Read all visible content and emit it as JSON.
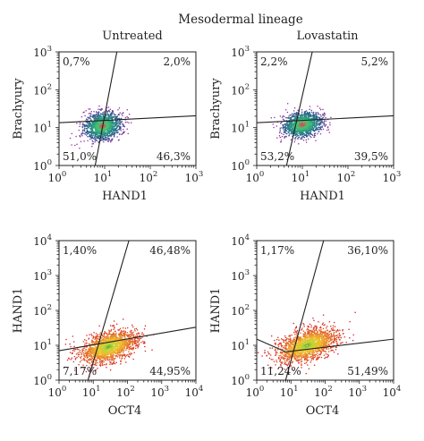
{
  "figure": {
    "title": "Mesodermal lineage"
  },
  "chart_data": [
    {
      "type": "scatter",
      "panel": "top-left",
      "title": "Untreated",
      "xlabel": "HAND1",
      "ylabel": "Brachyury",
      "x_scale": "log",
      "y_scale": "log",
      "xlim": [
        1,
        1000
      ],
      "ylim": [
        1,
        1000
      ],
      "x_ticks": [
        {
          "base": "10",
          "exp": "0"
        },
        {
          "base": "10",
          "exp": "1"
        },
        {
          "base": "10",
          "exp": "2"
        },
        {
          "base": "10",
          "exp": "3"
        }
      ],
      "y_ticks": [
        {
          "base": "10",
          "exp": "0"
        },
        {
          "base": "10",
          "exp": "1"
        },
        {
          "base": "10",
          "exp": "2"
        },
        {
          "base": "10",
          "exp": "3"
        }
      ],
      "quadrants": {
        "top_left": "0,7%",
        "top_right": "2,0%",
        "bottom_left": "51,0%",
        "bottom_right": "46,3%"
      },
      "gate_lines": [
        {
          "from": [
            1,
            13.5
          ],
          "to": [
            1000,
            20.5
          ]
        },
        {
          "from": [
            6.2,
            1
          ],
          "to": [
            18.5,
            1000
          ]
        }
      ],
      "population": {
        "center": [
          9,
          11
        ],
        "spread_log": [
          0.21,
          0.17
        ],
        "rotation_deg": 25,
        "count": 1400,
        "colormap": "density-cool"
      }
    },
    {
      "type": "scatter",
      "panel": "top-right",
      "title": "Lovastatin",
      "xlabel": "HAND1",
      "ylabel": "Brachyury",
      "x_scale": "log",
      "y_scale": "log",
      "xlim": [
        1,
        1000
      ],
      "ylim": [
        1,
        1000
      ],
      "x_ticks": [
        {
          "base": "10",
          "exp": "0"
        },
        {
          "base": "10",
          "exp": "1"
        },
        {
          "base": "10",
          "exp": "2"
        },
        {
          "base": "10",
          "exp": "3"
        }
      ],
      "y_ticks": [
        {
          "base": "10",
          "exp": "0"
        },
        {
          "base": "10",
          "exp": "1"
        },
        {
          "base": "10",
          "exp": "2"
        },
        {
          "base": "10",
          "exp": "3"
        }
      ],
      "quadrants": {
        "top_left": "2,2%",
        "top_right": "5,2%",
        "bottom_left": "53,2%",
        "bottom_right": "39,5%"
      },
      "gate_lines": [
        {
          "from": [
            1,
            13.5
          ],
          "to": [
            1000,
            20.5
          ]
        },
        {
          "from": [
            4.5,
            1
          ],
          "to": [
            16.5,
            1000
          ]
        }
      ],
      "population": {
        "center": [
          10,
          12
        ],
        "spread_log": [
          0.22,
          0.16
        ],
        "rotation_deg": 20,
        "count": 1400,
        "colormap": "density-cool"
      }
    },
    {
      "type": "scatter",
      "panel": "bottom-left",
      "title": "",
      "xlabel": "OCT4",
      "ylabel": "HAND1",
      "x_scale": "log",
      "y_scale": "log",
      "xlim": [
        1,
        10000
      ],
      "ylim": [
        1,
        10000
      ],
      "x_ticks": [
        {
          "base": "10",
          "exp": "0"
        },
        {
          "base": "10",
          "exp": "1"
        },
        {
          "base": "10",
          "exp": "2"
        },
        {
          "base": "10",
          "exp": "3"
        },
        {
          "base": "10",
          "exp": "4"
        }
      ],
      "y_ticks": [
        {
          "base": "10",
          "exp": "0"
        },
        {
          "base": "10",
          "exp": "1"
        },
        {
          "base": "10",
          "exp": "2"
        },
        {
          "base": "10",
          "exp": "3"
        },
        {
          "base": "10",
          "exp": "4"
        }
      ],
      "quadrants": {
        "top_left": "1,40%",
        "top_right": "46,48%",
        "bottom_left": "7,17%",
        "bottom_right": "44,95%"
      },
      "gate_lines": [
        {
          "from": [
            1,
            7
          ],
          "to": [
            10000,
            33
          ]
        },
        {
          "from": [
            7,
            1
          ],
          "to": [
            110,
            10000
          ]
        }
      ],
      "population": {
        "center": [
          28,
          9
        ],
        "spread_log": [
          0.42,
          0.2
        ],
        "rotation_deg": 18,
        "count": 1800,
        "colormap": "density-warm"
      }
    },
    {
      "type": "scatter",
      "panel": "bottom-right",
      "title": "",
      "xlabel": "OCT4",
      "ylabel": "HAND1",
      "x_scale": "log",
      "y_scale": "log",
      "xlim": [
        1,
        10000
      ],
      "ylim": [
        1,
        10000
      ],
      "x_ticks": [
        {
          "base": "10",
          "exp": "0"
        },
        {
          "base": "10",
          "exp": "1"
        },
        {
          "base": "10",
          "exp": "2"
        },
        {
          "base": "10",
          "exp": "3"
        },
        {
          "base": "10",
          "exp": "4"
        }
      ],
      "y_ticks": [
        {
          "base": "10",
          "exp": "0"
        },
        {
          "base": "10",
          "exp": "1"
        },
        {
          "base": "10",
          "exp": "2"
        },
        {
          "base": "10",
          "exp": "3"
        },
        {
          "base": "10",
          "exp": "4"
        }
      ],
      "quadrants": {
        "top_left": "1,17%",
        "top_right": "36,10%",
        "bottom_left": "11,24%",
        "bottom_right": "51,49%"
      },
      "gate_lines": [
        {
          "from": [
            1,
            15
          ],
          "to": [
            7,
            6.5
          ]
        },
        {
          "from": [
            7,
            6.5
          ],
          "to": [
            10000,
            15
          ]
        },
        {
          "from": [
            7,
            1
          ],
          "to": [
            90,
            10000
          ]
        }
      ],
      "population": {
        "center": [
          30,
          10
        ],
        "spread_log": [
          0.45,
          0.2
        ],
        "rotation_deg": 18,
        "count": 1800,
        "colormap": "density-warm"
      }
    }
  ]
}
